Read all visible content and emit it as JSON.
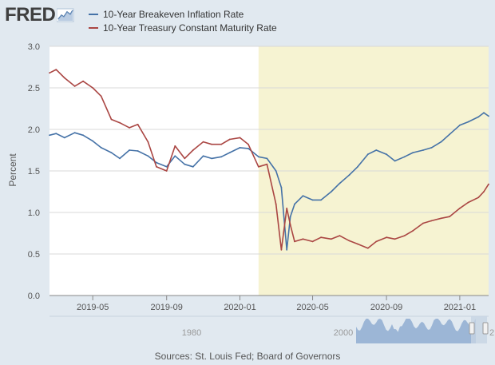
{
  "header": {
    "logo_text": "FRED",
    "logo_icon": "fred-chart-icon"
  },
  "legend": [
    {
      "label": "10-Year Breakeven Inflation Rate",
      "color": "#4572a7"
    },
    {
      "label": "10-Year Treasury Constant Maturity Rate",
      "color": "#aa4643"
    }
  ],
  "source_note": "Sources: St. Louis Fed; Board of Governors",
  "navigator": {
    "labels": [
      "1980",
      "2000",
      "2"
    ]
  },
  "colors": {
    "background": "#e1e9f0",
    "plot_area": "#ffffff",
    "recession_shade": "#f6f3d2",
    "series_1": "#4572a7",
    "series_2": "#aa4643",
    "navigator_fill": "#9cb6d6"
  },
  "chart_data": {
    "type": "line",
    "title": "",
    "xlabel": "",
    "ylabel": "Percent",
    "ylim": [
      0.0,
      3.0
    ],
    "yticks": [
      "0.0",
      "0.5",
      "1.0",
      "1.5",
      "2.0",
      "2.5",
      "3.0"
    ],
    "xlim": [
      "2019-02-18",
      "2021-02-18"
    ],
    "xticks": [
      {
        "date": "2019-05-01",
        "label": "2019-05"
      },
      {
        "date": "2019-09-01",
        "label": "2019-09"
      },
      {
        "date": "2020-01-01",
        "label": "2020-01"
      },
      {
        "date": "2020-05-01",
        "label": "2020-05"
      },
      {
        "date": "2020-09-01",
        "label": "2020-09"
      },
      {
        "date": "2021-01-01",
        "label": "2021-01"
      }
    ],
    "shaded_region": [
      "2020-02-01",
      "2021-02-18"
    ],
    "grid": "horizontal",
    "legend_position": "top-left",
    "series": [
      {
        "name": "10-Year Breakeven Inflation Rate",
        "color": "#4572a7",
        "x": [
          "2019-02-18",
          "2019-03-01",
          "2019-03-15",
          "2019-04-01",
          "2019-04-15",
          "2019-05-01",
          "2019-05-15",
          "2019-06-01",
          "2019-06-15",
          "2019-07-01",
          "2019-07-15",
          "2019-08-01",
          "2019-08-15",
          "2019-09-01",
          "2019-09-15",
          "2019-10-01",
          "2019-10-15",
          "2019-11-01",
          "2019-11-15",
          "2019-12-01",
          "2019-12-15",
          "2020-01-01",
          "2020-01-15",
          "2020-02-01",
          "2020-02-15",
          "2020-03-01",
          "2020-03-10",
          "2020-03-19",
          "2020-03-25",
          "2020-04-01",
          "2020-04-15",
          "2020-05-01",
          "2020-05-15",
          "2020-06-01",
          "2020-06-15",
          "2020-07-01",
          "2020-07-15",
          "2020-08-01",
          "2020-08-15",
          "2020-09-01",
          "2020-09-15",
          "2020-10-01",
          "2020-10-15",
          "2020-11-01",
          "2020-11-15",
          "2020-12-01",
          "2020-12-15",
          "2021-01-01",
          "2021-01-15",
          "2021-02-01",
          "2021-02-10",
          "2021-02-18"
        ],
        "y": [
          1.93,
          1.95,
          1.9,
          1.96,
          1.93,
          1.86,
          1.78,
          1.72,
          1.65,
          1.75,
          1.74,
          1.68,
          1.6,
          1.55,
          1.68,
          1.58,
          1.55,
          1.68,
          1.65,
          1.67,
          1.72,
          1.78,
          1.77,
          1.67,
          1.65,
          1.5,
          1.3,
          0.55,
          0.95,
          1.1,
          1.2,
          1.15,
          1.15,
          1.25,
          1.35,
          1.45,
          1.55,
          1.7,
          1.75,
          1.7,
          1.62,
          1.67,
          1.72,
          1.75,
          1.78,
          1.85,
          1.94,
          2.05,
          2.09,
          2.15,
          2.2,
          2.16
        ]
      },
      {
        "name": "10-Year Treasury Constant Maturity Rate",
        "color": "#aa4643",
        "x": [
          "2019-02-18",
          "2019-03-01",
          "2019-03-15",
          "2019-04-01",
          "2019-04-15",
          "2019-05-01",
          "2019-05-15",
          "2019-06-01",
          "2019-06-15",
          "2019-07-01",
          "2019-07-15",
          "2019-08-01",
          "2019-08-15",
          "2019-09-01",
          "2019-09-15",
          "2019-10-01",
          "2019-10-15",
          "2019-11-01",
          "2019-11-15",
          "2019-12-01",
          "2019-12-15",
          "2020-01-01",
          "2020-01-15",
          "2020-02-01",
          "2020-02-15",
          "2020-03-01",
          "2020-03-10",
          "2020-03-19",
          "2020-03-25",
          "2020-04-01",
          "2020-04-15",
          "2020-05-01",
          "2020-05-15",
          "2020-06-01",
          "2020-06-15",
          "2020-07-01",
          "2020-07-15",
          "2020-08-01",
          "2020-08-15",
          "2020-09-01",
          "2020-09-15",
          "2020-10-01",
          "2020-10-15",
          "2020-11-01",
          "2020-11-15",
          "2020-12-01",
          "2020-12-15",
          "2021-01-01",
          "2021-01-15",
          "2021-02-01",
          "2021-02-10",
          "2021-02-18"
        ],
        "y": [
          2.68,
          2.72,
          2.62,
          2.52,
          2.58,
          2.5,
          2.4,
          2.12,
          2.08,
          2.02,
          2.06,
          1.85,
          1.55,
          1.5,
          1.8,
          1.65,
          1.75,
          1.85,
          1.82,
          1.82,
          1.88,
          1.9,
          1.82,
          1.55,
          1.58,
          1.1,
          0.55,
          1.05,
          0.85,
          0.65,
          0.68,
          0.65,
          0.7,
          0.68,
          0.72,
          0.66,
          0.62,
          0.57,
          0.65,
          0.7,
          0.68,
          0.72,
          0.78,
          0.87,
          0.9,
          0.93,
          0.95,
          1.05,
          1.12,
          1.18,
          1.25,
          1.34
        ]
      }
    ]
  }
}
